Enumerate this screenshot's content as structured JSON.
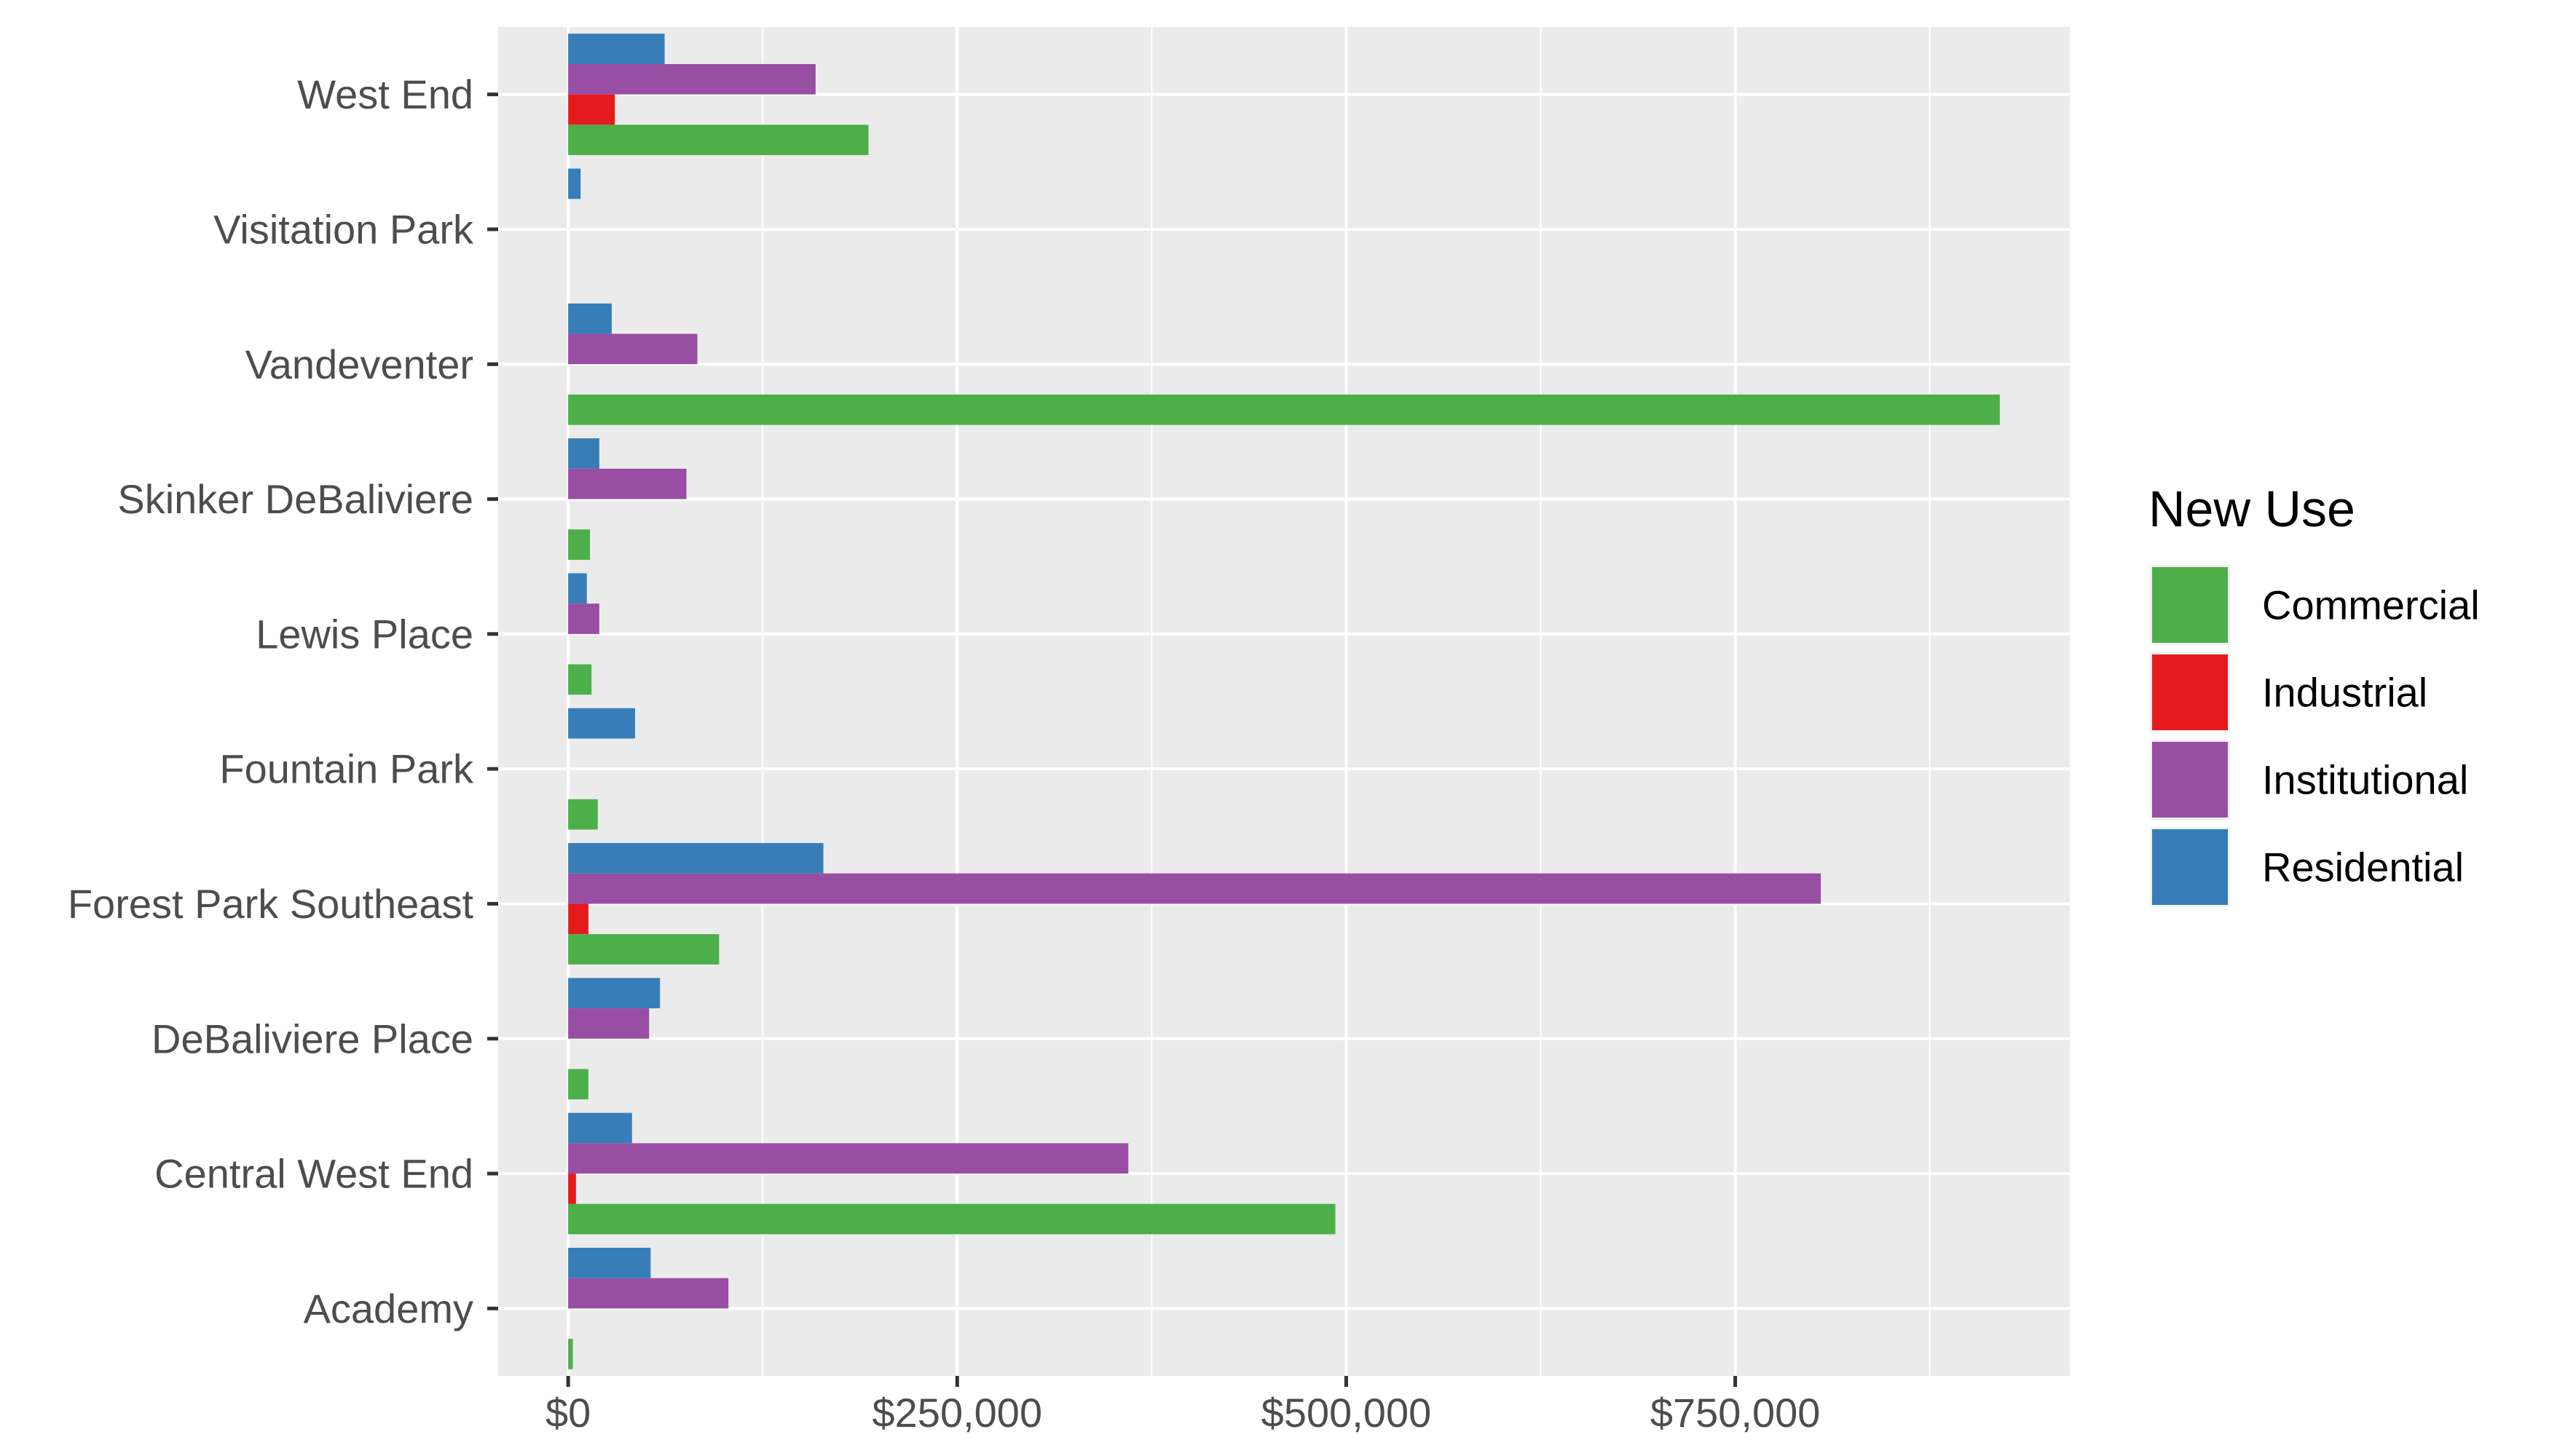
{
  "chart_data": {
    "type": "bar",
    "orientation": "horizontal",
    "title": "",
    "xlabel": "",
    "ylabel": "",
    "categories": [
      "West End",
      "Visitation Park",
      "Vandeventer",
      "Skinker DeBaliviere",
      "Lewis Place",
      "Fountain Park",
      "Forest Park Southeast",
      "DeBaliviere Place",
      "Central West End",
      "Academy"
    ],
    "series": [
      {
        "name": "Commercial",
        "color": "#4daf4a",
        "values": [
          193000,
          null,
          920000,
          14000,
          15000,
          19000,
          97000,
          13000,
          493000,
          3000
        ]
      },
      {
        "name": "Industrial",
        "color": "#e41a1c",
        "values": [
          30000,
          null,
          null,
          null,
          null,
          null,
          13000,
          null,
          5000,
          null
        ]
      },
      {
        "name": "Institutional",
        "color": "#984ea3",
        "values": [
          159000,
          null,
          83000,
          76000,
          20000,
          null,
          805000,
          52000,
          360000,
          103000
        ]
      },
      {
        "name": "Residential",
        "color": "#377eb8",
        "values": [
          62000,
          8000,
          28000,
          20000,
          12000,
          43000,
          164000,
          59000,
          41000,
          53000
        ]
      }
    ],
    "xlim": [
      -45000,
      965000
    ],
    "x_ticks": [
      0,
      250000,
      500000,
      750000
    ],
    "x_tick_labels": [
      "$0",
      "$250,000",
      "$500,000",
      "$750,000"
    ],
    "grid": true,
    "legend": {
      "title": "New Use",
      "position": "right"
    }
  }
}
